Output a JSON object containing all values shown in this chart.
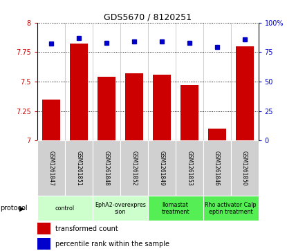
{
  "title": "GDS5670 / 8120251",
  "samples": [
    "GSM1261847",
    "GSM1261851",
    "GSM1261848",
    "GSM1261852",
    "GSM1261849",
    "GSM1261853",
    "GSM1261846",
    "GSM1261850"
  ],
  "transformed_counts": [
    7.35,
    7.82,
    7.54,
    7.57,
    7.56,
    7.47,
    7.1,
    7.8
  ],
  "percentile_ranks": [
    82,
    87,
    83,
    84,
    84,
    83,
    79,
    86
  ],
  "protocols": [
    {
      "label": "control",
      "span": [
        0,
        1
      ],
      "color": "#ccffcc"
    },
    {
      "label": "EphA2-overexpres\nsion",
      "span": [
        2,
        3
      ],
      "color": "#ccffcc"
    },
    {
      "label": "Ilomastat\ntreatment",
      "span": [
        4,
        5
      ],
      "color": "#55ee55"
    },
    {
      "label": "Rho activator Calp\neptin treatment",
      "span": [
        6,
        7
      ],
      "color": "#55ee55"
    }
  ],
  "ylim_left": [
    7.0,
    8.0
  ],
  "ylim_right": [
    0,
    100
  ],
  "yticks_left": [
    7.0,
    7.25,
    7.5,
    7.75,
    8.0
  ],
  "yticks_right": [
    0,
    25,
    50,
    75,
    100
  ],
  "ytick_labels_left": [
    "7",
    "7.25",
    "7.5",
    "7.75",
    "8"
  ],
  "ytick_labels_right": [
    "0",
    "25",
    "50",
    "75",
    "100%"
  ],
  "bar_color": "#cc0000",
  "dot_color": "#0000cc",
  "bar_width": 0.65,
  "background_color": "#ffffff",
  "left_tick_color": "#cc0000",
  "right_tick_color": "#0000cc",
  "sample_cell_color": "#d0d0d0",
  "figsize": [
    4.15,
    3.63
  ],
  "dpi": 100
}
